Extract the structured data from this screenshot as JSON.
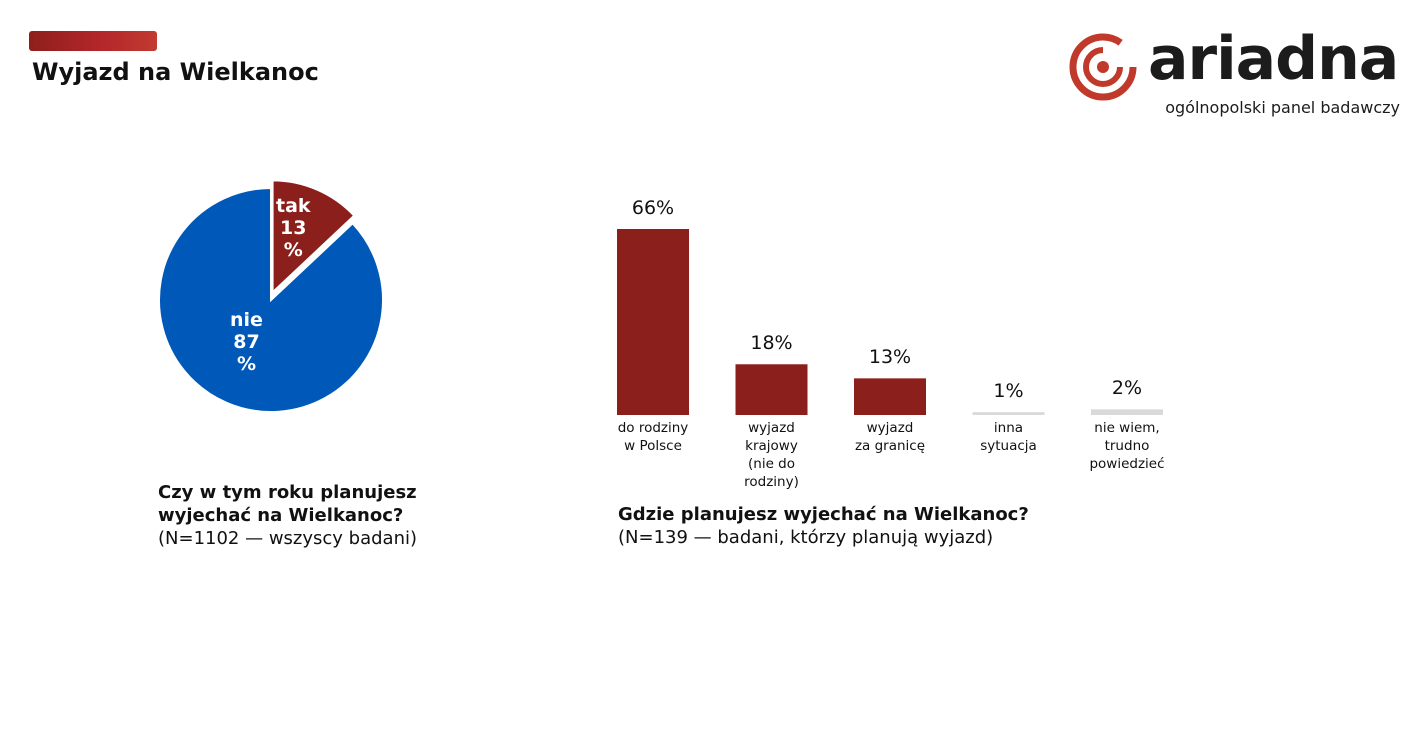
{
  "header": {
    "title": "Wyjazd na Wielkanoc",
    "accent_color": "#b3262a"
  },
  "logo": {
    "wordmark": "ariadna",
    "tagline": "ogólnopolski panel badawczy"
  },
  "colors": {
    "pie_yes": "#8b1f1b",
    "pie_no": "#0058b8",
    "bar_main": "#8b1f1b",
    "bar_minor": "#d9d9d9"
  },
  "chart_data": [
    {
      "type": "pie",
      "slices": [
        {
          "label": "tak",
          "value": 13,
          "display": "13\n%",
          "color": "#8b1f1b"
        },
        {
          "label": "nie",
          "value": 87,
          "display": "87\n%",
          "color": "#0058b8"
        }
      ],
      "title": "Czy w tym roku planujesz wyjechać na Wielkanoc?",
      "subtitle": "(N=1102 — wszyscy badani)"
    },
    {
      "type": "bar",
      "categories": [
        "do rodziny\nw Polsce",
        "wyjazd\nkrajowy\n(nie do\nrodziny)",
        "wyjazd\nza granicę",
        "inna\nsytuacja",
        "nie wiem,\ntrudno\npowiedzieć"
      ],
      "values": [
        66,
        18,
        13,
        1,
        2
      ],
      "value_labels": [
        "66%",
        "18%",
        "13%",
        "1%",
        "2%"
      ],
      "colors": [
        "#8b1f1b",
        "#8b1f1b",
        "#8b1f1b",
        "#d9d9d9",
        "#d9d9d9"
      ],
      "title": "Gdzie planujesz wyjechać na Wielkanoc?",
      "subtitle": "(N=139 — badani, którzy planują wyjazd)",
      "ylim": [
        0,
        66
      ],
      "grid": false
    }
  ]
}
